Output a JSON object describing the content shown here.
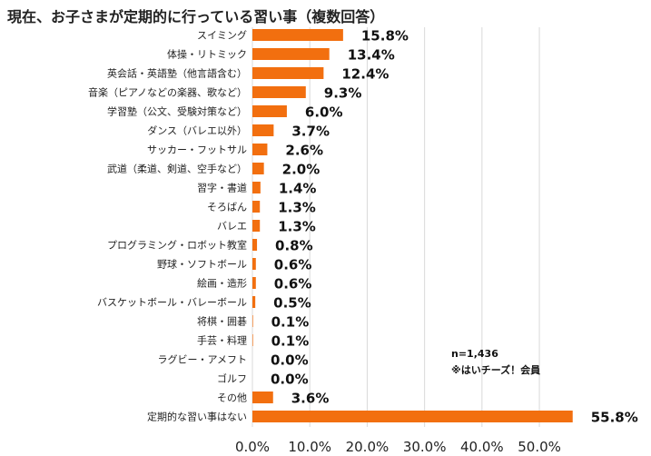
{
  "chart_data": {
    "type": "bar",
    "orientation": "horizontal",
    "title": "現在、お子さまが定期的に行っている習い事（複数回答）",
    "categories": [
      "スイミング",
      "体操・リトミック",
      "英会話・英語塾（他言語含む）",
      "音楽（ピアノなどの楽器、歌など）",
      "学習塾（公文、受験対策など）",
      "ダンス（バレエ以外）",
      "サッカー・フットサル",
      "武道（柔道、剣道、空手など）",
      "習字・書道",
      "そろばん",
      "バレエ",
      "プログラミング・ロボット教室",
      "野球・ソフトボール",
      "絵画・造形",
      "バスケットボール・バレーボール",
      "将棋・囲碁",
      "手芸・料理",
      "ラグビー・アメフト",
      "ゴルフ",
      "その他",
      "定期的な習い事はない"
    ],
    "values": [
      15.8,
      13.4,
      12.4,
      9.3,
      6.0,
      3.7,
      2.6,
      2.0,
      1.4,
      1.3,
      1.3,
      0.8,
      0.6,
      0.6,
      0.5,
      0.1,
      0.1,
      0.0,
      0.0,
      3.6,
      55.8
    ],
    "value_labels": [
      "15.8%",
      "13.4%",
      "12.4%",
      "9.3%",
      "6.0%",
      "3.7%",
      "2.6%",
      "2.0%",
      "1.4%",
      "1.3%",
      "1.3%",
      "0.8%",
      "0.6%",
      "0.6%",
      "0.5%",
      "0.1%",
      "0.1%",
      "0.0%",
      "0.0%",
      "3.6%",
      "55.8%"
    ],
    "xlim": [
      0,
      56
    ],
    "x_ticks": [
      0,
      10,
      20,
      30,
      40,
      50
    ],
    "x_tick_labels": [
      "0.0%",
      "10.0%",
      "20.0%",
      "30.0%",
      "40.0%",
      "50.0%"
    ],
    "bar_color": "#f26f0f",
    "grid": true,
    "annotation": [
      "n=1,436",
      "※はいチーズ！会員"
    ]
  }
}
